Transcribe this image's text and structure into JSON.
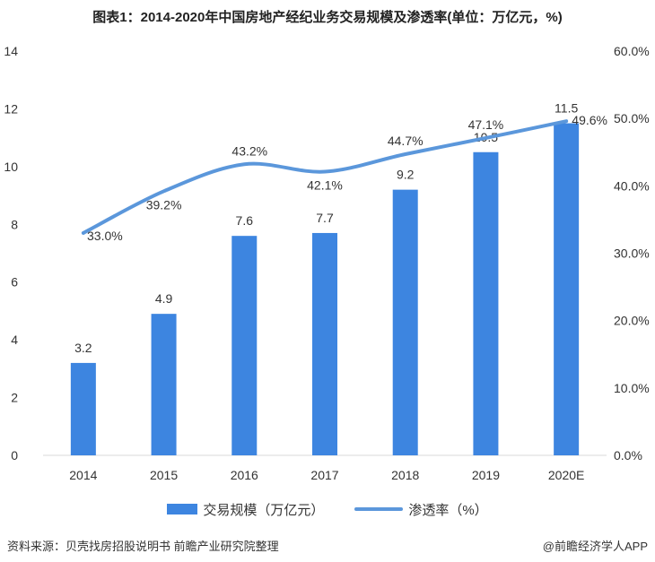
{
  "title": "图表1：2014-2020年中国房地产经纪业务交易规模及渗透率(单位：万亿元，%)",
  "chart_data": {
    "type": "bar",
    "categories": [
      "2014",
      "2015",
      "2016",
      "2017",
      "2018",
      "2019",
      "2020E"
    ],
    "series": [
      {
        "name": "交易规模（万亿元）",
        "type": "bar",
        "axis": "left",
        "values": [
          3.2,
          4.9,
          7.6,
          7.7,
          9.2,
          10.5,
          11.5
        ],
        "labels": [
          "3.2",
          "4.9",
          "7.6",
          "7.7",
          "9.2",
          "10.5",
          "11.5"
        ]
      },
      {
        "name": "渗透率（%）",
        "type": "line",
        "axis": "right",
        "values": [
          33.0,
          39.2,
          43.2,
          42.1,
          44.7,
          47.1,
          49.6
        ],
        "labels": [
          "33.0%",
          "39.2%",
          "43.2%",
          "42.1%",
          "44.7%",
          "47.1%",
          "49.6%"
        ]
      }
    ],
    "y_left": {
      "min": 0,
      "max": 14,
      "ticks": [
        "0",
        "2",
        "4",
        "6",
        "8",
        "10",
        "12",
        "14"
      ]
    },
    "y_right": {
      "min": 0,
      "max": 60,
      "ticks": [
        "0.0%",
        "10.0%",
        "20.0%",
        "30.0%",
        "40.0%",
        "50.0%",
        "60.0%"
      ]
    },
    "grid": false,
    "legend_position": "bottom",
    "colors": {
      "bar": "#3D85E0",
      "line": "#5B97DB"
    }
  },
  "footer": {
    "source": "资料来源：贝壳找房招股说明书 前瞻产业研究院整理",
    "credit": "@前瞻经济学人APP"
  }
}
